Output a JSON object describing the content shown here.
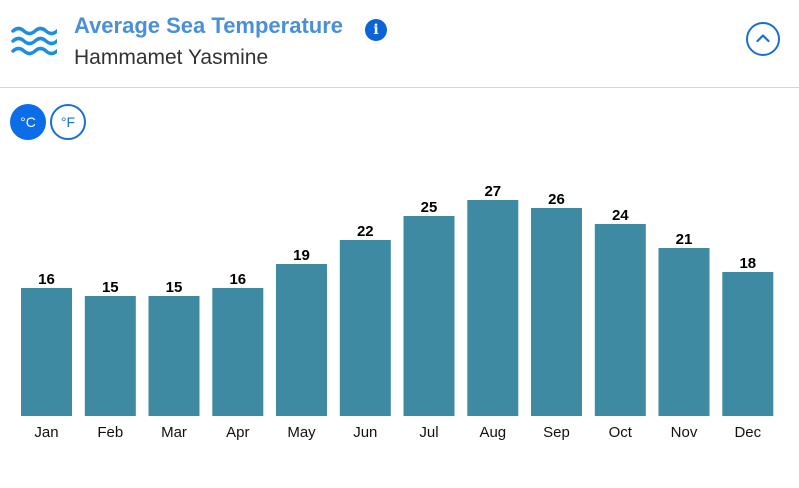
{
  "header": {
    "title": "Average Sea Temperature",
    "subtitle": "Hammamet Yasmine",
    "info_icon": "i",
    "waves_icon": "waves-icon",
    "collapse_icon": "chevron-up-icon"
  },
  "units": {
    "celsius_label": "°C",
    "fahrenheit_label": "°F",
    "selected": "°C"
  },
  "colors": {
    "bar": "#3f8aa3",
    "title": "#4a90d9",
    "accent": "#0b6ee8"
  },
  "chart_data": {
    "type": "bar",
    "categories": [
      "Jan",
      "Feb",
      "Mar",
      "Apr",
      "May",
      "Jun",
      "Jul",
      "Aug",
      "Sep",
      "Oct",
      "Nov",
      "Dec"
    ],
    "values": [
      16,
      15,
      15,
      16,
      19,
      22,
      25,
      27,
      26,
      24,
      21,
      18
    ],
    "title": "",
    "xlabel": "",
    "ylabel": "",
    "ylim": [
      0,
      27
    ],
    "grid": false,
    "legend": "none"
  }
}
